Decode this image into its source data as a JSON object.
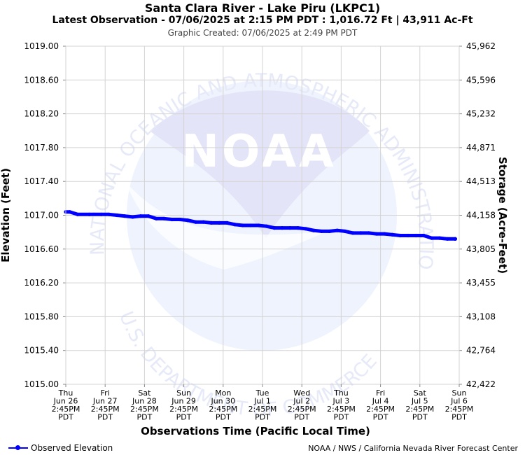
{
  "header": {
    "title": "Santa Clara River - Lake Piru (LKPC1)",
    "subtitle": "Latest Observation - 07/06/2025 at 2:15 PM PDT : 1,016.72 Ft | 43,911 Ac-Ft",
    "created": "Graphic Created: 07/06/2025 at 2:49 PM PDT"
  },
  "watermark": {
    "logo_text": "NOAA",
    "arc_top": "NATIONAL OCEANIC AND ATMOSPHERIC ADMINISTRATION",
    "arc_bottom": "U.S. DEPARTMENT OF COMMERCE"
  },
  "legend": {
    "label": "Observed Elevation"
  },
  "credit": "NOAA / NWS / California Nevada River Forecast Center",
  "colors": {
    "series": "#0000ff",
    "grid": "#d3d3d3",
    "watermark": "#e6e9f8"
  },
  "chart_data": {
    "type": "line",
    "title": "Santa Clara River - Lake Piru (LKPC1)",
    "xlabel": "Observations Time (Pacific Local Time)",
    "ylabel": "Elevation (Feet)",
    "y2label": "Storage (Acre-Feet)",
    "ylim": [
      1015.0,
      1019.0
    ],
    "xlim": [
      0,
      10
    ],
    "y_ticks": [
      "1015.00",
      "1015.40",
      "1015.80",
      "1016.20",
      "1016.60",
      "1017.00",
      "1017.40",
      "1017.80",
      "1018.20",
      "1018.60",
      "1019.00"
    ],
    "y2_ticks": [
      "42,422",
      "42,764",
      "43,108",
      "43,455",
      "43,805",
      "44,158",
      "44,513",
      "44,871",
      "45,232",
      "45,596",
      "45,962"
    ],
    "x_ticks": [
      [
        "Thu",
        "Jun 26",
        "2:45PM",
        "PDT"
      ],
      [
        "Fri",
        "Jun 27",
        "2:45PM",
        "PDT"
      ],
      [
        "Sat",
        "Jun 28",
        "2:45PM",
        "PDT"
      ],
      [
        "Sun",
        "Jun 29",
        "2:45PM",
        "PDT"
      ],
      [
        "Mon",
        "Jun 30",
        "2:45PM",
        "PDT"
      ],
      [
        "Tue",
        "Jul 1",
        "2:45PM",
        "PDT"
      ],
      [
        "Wed",
        "Jul 2",
        "2:45PM",
        "PDT"
      ],
      [
        "Thu",
        "Jul 3",
        "2:45PM",
        "PDT"
      ],
      [
        "Fri",
        "Jul 4",
        "2:45PM",
        "PDT"
      ],
      [
        "Sat",
        "Jul 5",
        "2:45PM",
        "PDT"
      ],
      [
        "Sun",
        "Jul 6",
        "2:45PM",
        "PDT"
      ]
    ],
    "series": [
      {
        "name": "Observed Elevation",
        "x": [
          0.0,
          0.1,
          0.3,
          0.6,
          0.9,
          1.1,
          1.3,
          1.5,
          1.7,
          1.9,
          2.1,
          2.3,
          2.5,
          2.7,
          2.9,
          3.1,
          3.3,
          3.5,
          3.7,
          3.9,
          4.1,
          4.3,
          4.5,
          4.7,
          4.9,
          5.1,
          5.3,
          5.5,
          5.7,
          5.9,
          6.1,
          6.3,
          6.5,
          6.7,
          6.9,
          7.1,
          7.3,
          7.5,
          7.7,
          7.9,
          8.1,
          8.3,
          8.5,
          8.7,
          8.9,
          9.1,
          9.3,
          9.5,
          9.7,
          9.9,
          9.9
        ],
        "y": [
          1017.04,
          1017.04,
          1017.01,
          1017.01,
          1017.01,
          1017.01,
          1017.0,
          1016.99,
          1016.98,
          1016.99,
          1016.99,
          1016.96,
          1016.96,
          1016.95,
          1016.95,
          1016.94,
          1016.92,
          1016.92,
          1016.91,
          1016.91,
          1016.91,
          1016.89,
          1016.88,
          1016.88,
          1016.88,
          1016.87,
          1016.85,
          1016.85,
          1016.85,
          1016.85,
          1016.84,
          1016.82,
          1016.81,
          1016.81,
          1016.82,
          1016.81,
          1016.79,
          1016.79,
          1016.79,
          1016.78,
          1016.78,
          1016.77,
          1016.76,
          1016.76,
          1016.76,
          1016.76,
          1016.73,
          1016.73,
          1016.72,
          1016.72,
          1016.72
        ]
      }
    ]
  }
}
